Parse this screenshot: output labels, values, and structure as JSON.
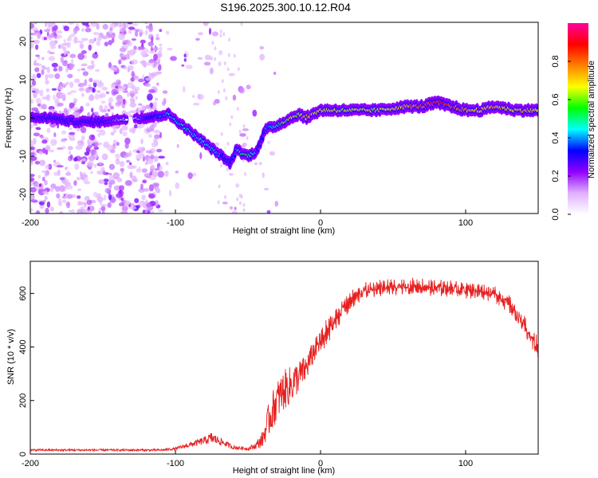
{
  "chart_data": [
    {
      "type": "heatmap",
      "title": "S196.2025.300.10.12.R04",
      "xlabel": "Height of straight line (km)",
      "ylabel": "Frequency (Hz)",
      "xlim": [
        -200,
        150
      ],
      "ylim": [
        -25,
        25
      ],
      "xticks": [
        -200,
        -100,
        0,
        100
      ],
      "yticks": [
        -20,
        -10,
        0,
        10,
        20
      ],
      "colorbar": {
        "label": "Normalized spectral amplitude",
        "range": [
          0,
          1
        ],
        "ticks": [
          "0.0",
          "0.2",
          "0.4",
          "0.6",
          "0.8"
        ],
        "tick_values": [
          0.0,
          0.2,
          0.4,
          0.6,
          0.8
        ],
        "colors": [
          "#ffffff",
          "#e0b0ff",
          "#9000ff",
          "#0000ff",
          "#00ffff",
          "#00ff00",
          "#ffff00",
          "#ff8000",
          "#ff0000",
          "#ff00a0"
        ]
      },
      "ridge": {
        "x": [
          -200,
          -185,
          -170,
          -150,
          -130,
          -120,
          -105,
          -95,
          -85,
          -75,
          -68,
          -62,
          -58,
          -55,
          -50,
          -45,
          -42,
          -38,
          -30,
          -25,
          -20,
          -15,
          -10,
          0,
          10,
          20,
          40,
          60,
          70,
          80,
          90,
          100,
          110,
          120,
          135,
          150
        ],
        "y": [
          0,
          0,
          -1,
          -1,
          0,
          0,
          1,
          -2,
          -5,
          -8,
          -10,
          -12,
          -8,
          -9,
          -10,
          -9,
          -7,
          -3,
          -2,
          -1,
          0,
          1,
          0,
          2,
          2,
          2,
          2,
          3,
          3,
          4,
          3,
          2,
          2,
          3,
          2,
          2
        ],
        "amplitude": [
          0.25,
          0.3,
          0.3,
          0.3,
          0.0,
          0.3,
          0.45,
          0.5,
          0.5,
          0.5,
          0.4,
          0.35,
          0.4,
          0.55,
          0.6,
          0.5,
          0.3,
          0.4,
          0.55,
          0.65,
          0.75,
          0.7,
          0.8,
          0.75,
          0.7,
          0.7,
          0.7,
          0.8,
          0.85,
          0.95,
          0.9,
          0.8,
          0.75,
          0.8,
          0.75,
          0.8
        ]
      }
    },
    {
      "type": "line",
      "xlabel": "Height of straight line (km)",
      "ylabel": "SNR (10 * v/v)",
      "xlim": [
        -200,
        150
      ],
      "ylim": [
        0,
        720
      ],
      "xticks": [
        -200,
        -100,
        0,
        100
      ],
      "yticks": [
        0,
        200,
        400,
        600
      ],
      "series": [
        {
          "name": "SNR",
          "color": "#e62020",
          "x": [
            -200,
            -150,
            -110,
            -100,
            -90,
            -80,
            -75,
            -70,
            -60,
            -50,
            -45,
            -40,
            -35,
            -30,
            -25,
            -20,
            -15,
            -10,
            -5,
            0,
            5,
            10,
            15,
            20,
            25,
            30,
            40,
            50,
            60,
            70,
            80,
            90,
            100,
            110,
            120,
            130,
            140,
            150
          ],
          "mean": [
            15,
            15,
            15,
            20,
            35,
            50,
            60,
            50,
            25,
            20,
            30,
            55,
            140,
            200,
            240,
            260,
            290,
            320,
            380,
            420,
            460,
            500,
            540,
            570,
            590,
            610,
            620,
            620,
            625,
            625,
            620,
            620,
            615,
            610,
            600,
            560,
            480,
            390
          ],
          "noise": [
            8,
            8,
            8,
            10,
            20,
            30,
            45,
            30,
            15,
            12,
            25,
            60,
            140,
            150,
            150,
            140,
            120,
            100,
            90,
            80,
            70,
            60,
            55,
            50,
            45,
            40,
            40,
            40,
            40,
            40,
            40,
            40,
            40,
            40,
            40,
            45,
            50,
            55
          ]
        }
      ]
    }
  ]
}
